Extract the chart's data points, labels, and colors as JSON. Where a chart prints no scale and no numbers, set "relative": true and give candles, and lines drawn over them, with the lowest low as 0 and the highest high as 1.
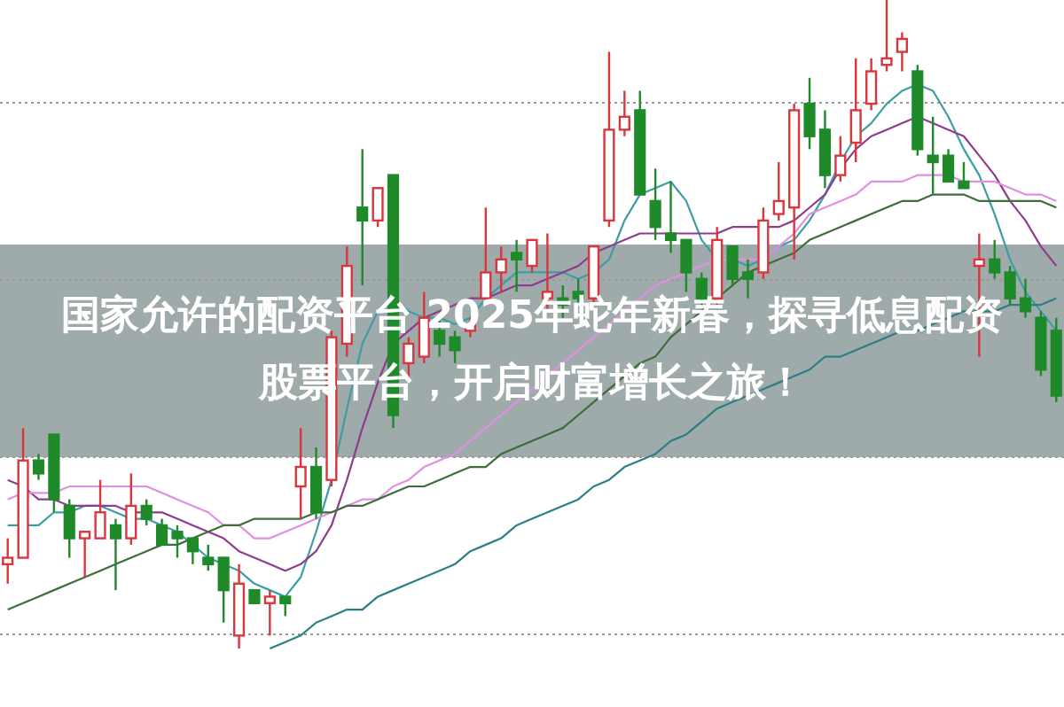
{
  "chart_data": {
    "type": "candlestick",
    "title": "国家允许的配资平台 2025年蛇年新春，探寻低息配资股票平台，开启财富增长之旅！",
    "relative": true,
    "grid": true,
    "categories": [
      null,
      null,
      null,
      null,
      null,
      null,
      null,
      null,
      null,
      null,
      null,
      null,
      null,
      null,
      null,
      null,
      null,
      null,
      null,
      null,
      null,
      null,
      null,
      null,
      null,
      null,
      null,
      null,
      null,
      null,
      null,
      null,
      null,
      null,
      null,
      null,
      null,
      null,
      null,
      null,
      null,
      null,
      null,
      null,
      null,
      null,
      null,
      null,
      null,
      null,
      null,
      null,
      null,
      null,
      null,
      null,
      null,
      null,
      null,
      null,
      null,
      null,
      null,
      null,
      null,
      null,
      null,
      null,
      null
    ],
    "colors": [
      "#d9363e",
      "#d9363e",
      "#1f8a2a",
      "#1f8a2a",
      "#1f8a2a",
      "#d9363e",
      "#d9363e",
      "#1f8a2a",
      "#d9363e",
      "#1f8a2a",
      "#1f8a2a",
      "#1f8a2a",
      "#1f8a2a",
      "#1f8a2a",
      "#1f8a2a",
      "#d9363e",
      "#1f8a2a",
      "#d9363e",
      "#1f8a2a",
      "#d9363e",
      "#1f8a2a",
      "#d9363e",
      "#d9363e",
      "#1f8a2a",
      "#d9363e",
      "#1f8a2a",
      "#d9363e",
      "#d9363e",
      "#1f8a2a",
      "#1f8a2a",
      "#d9363e",
      "#d9363e",
      "#d9363e",
      "#1f8a2a",
      "#d9363e",
      "#d9363e",
      "#1f8a2a",
      "#1f8a2a",
      "#d9363e",
      "#d9363e",
      "#d9363e",
      "#1f8a2a",
      "#1f8a2a",
      "#1f8a2a",
      "#1f8a2a",
      "#1f8a2a",
      "#d9363e",
      "#1f8a2a",
      "#1f8a2a",
      "#d9363e",
      "#d9363e",
      "#d9363e",
      "#1f8a2a",
      "#1f8a2a",
      "#d9363e",
      "#d9363e",
      "#d9363e",
      "#d9363e",
      "#d9363e",
      "#1f8a2a",
      "#1f8a2a",
      "#1f8a2a",
      "#1f8a2a",
      "#d9363e",
      "#1f8a2a",
      "#1f8a2a",
      "#1f8a2a",
      "#1f8a2a",
      "#1f8a2a"
    ],
    "ohlc": [
      [
        0.13,
        0.17,
        0.1,
        0.14
      ],
      [
        0.14,
        0.34,
        0.14,
        0.29
      ],
      [
        0.29,
        0.3,
        0.26,
        0.27
      ],
      [
        0.33,
        0.33,
        0.21,
        0.23
      ],
      [
        0.22,
        0.23,
        0.14,
        0.17
      ],
      [
        0.17,
        0.18,
        0.11,
        0.18
      ],
      [
        0.17,
        0.26,
        0.17,
        0.21
      ],
      [
        0.19,
        0.2,
        0.09,
        0.17
      ],
      [
        0.17,
        0.27,
        0.16,
        0.22
      ],
      [
        0.22,
        0.23,
        0.19,
        0.2
      ],
      [
        0.19,
        0.2,
        0.16,
        0.16
      ],
      [
        0.18,
        0.19,
        0.14,
        0.17
      ],
      [
        0.17,
        0.17,
        0.13,
        0.15
      ],
      [
        0.14,
        0.16,
        0.12,
        0.13
      ],
      [
        0.14,
        0.14,
        0.04,
        0.09
      ],
      [
        0.02,
        0.13,
        0,
        0.1
      ],
      [
        0.09,
        0.09,
        0.07,
        0.07
      ],
      [
        0.07,
        0.09,
        0.02,
        0.08
      ],
      [
        0.08,
        0.08,
        0.05,
        0.07
      ],
      [
        0.25,
        0.34,
        0.2,
        0.28
      ],
      [
        0.28,
        0.31,
        0.2,
        0.21
      ],
      [
        0.26,
        0.49,
        0.25,
        0.48
      ],
      [
        0.47,
        0.62,
        0.45,
        0.59
      ],
      [
        0.68,
        0.77,
        0.56,
        0.66
      ],
      [
        0.66,
        0.71,
        0.65,
        0.71
      ],
      [
        0.73,
        0.73,
        0.34,
        0.36
      ],
      [
        0.44,
        0.48,
        0.41,
        0.47
      ],
      [
        0.45,
        0.55,
        0.44,
        0.51
      ],
      [
        0.49,
        0.51,
        0.45,
        0.47
      ],
      [
        0.48,
        0.49,
        0.44,
        0.46
      ],
      [
        0.49,
        0.51,
        0.48,
        0.5
      ],
      [
        0.54,
        0.68,
        0.54,
        0.58
      ],
      [
        0.58,
        0.62,
        0.55,
        0.6
      ],
      [
        0.61,
        0.63,
        0.55,
        0.6
      ],
      [
        0.59,
        0.63,
        0.58,
        0.63
      ],
      [
        0.54,
        0.64,
        0.52,
        0.55
      ],
      [
        0.54,
        0.56,
        0.51,
        0.53
      ],
      [
        0.55,
        0.57,
        0.53,
        0.54
      ],
      [
        0.54,
        0.62,
        0.53,
        0.62
      ],
      [
        0.66,
        0.92,
        0.65,
        0.8
      ],
      [
        0.8,
        0.86,
        0.79,
        0.82
      ],
      [
        0.83,
        0.86,
        0.7,
        0.7
      ],
      [
        0.69,
        0.74,
        0.63,
        0.65
      ],
      [
        0.64,
        0.72,
        0.61,
        0.63
      ],
      [
        0.63,
        0.63,
        0.55,
        0.58
      ],
      [
        0.57,
        0.58,
        0.53,
        0.54
      ],
      [
        0.54,
        0.65,
        0.53,
        0.63
      ],
      [
        0.62,
        0.62,
        0.56,
        0.57
      ],
      [
        0.58,
        0.6,
        0.54,
        0.57
      ],
      [
        0.58,
        0.68,
        0.57,
        0.66
      ],
      [
        0.67,
        0.75,
        0.66,
        0.69
      ],
      [
        0.68,
        0.84,
        0.6,
        0.83
      ],
      [
        0.84,
        0.88,
        0.77,
        0.79
      ],
      [
        0.8,
        0.83,
        0.71,
        0.73
      ],
      [
        0.73,
        0.79,
        0.72,
        0.76
      ],
      [
        0.78,
        0.91,
        0.75,
        0.83
      ],
      [
        0.84,
        0.91,
        0.83,
        0.89
      ],
      [
        0.9,
        1,
        0.89,
        0.91
      ],
      [
        0.92,
        0.95,
        0.89,
        0.94
      ],
      [
        0.89,
        0.9,
        0.76,
        0.77
      ],
      [
        0.76,
        0.82,
        0.7,
        0.75
      ],
      [
        0.76,
        0.77,
        0.72,
        0.72
      ],
      [
        0.72,
        0.75,
        0.71,
        0.71
      ],
      [
        0.59,
        0.64,
        0.45,
        0.6
      ],
      [
        0.6,
        0.63,
        0.57,
        0.58
      ],
      [
        0.58,
        0.59,
        0.53,
        0.54
      ],
      [
        0.54,
        0.57,
        0.51,
        0.52
      ],
      [
        0.51,
        0.52,
        0.42,
        0.43
      ],
      [
        0.49,
        0.51,
        0.38,
        0.39
      ]
    ],
    "series": [
      {
        "type": "line",
        "color": "#3c9ea4",
        "values": [
          0.19,
          0.19,
          0.19,
          0.21,
          0.21,
          0.22,
          0.22,
          0.21,
          0.2,
          0.2,
          0.19,
          0.18,
          0.16,
          0.14,
          0.13,
          0.12,
          0.1,
          0.09,
          0.08,
          0.11,
          0.18,
          0.26,
          0.37,
          0.47,
          0.52,
          0.54,
          0.52,
          0.51,
          0.51,
          0.5,
          0.51,
          0.54,
          0.56,
          0.58,
          0.58,
          0.58,
          0.58,
          0.57,
          0.58,
          0.6,
          0.66,
          0.7,
          0.71,
          0.72,
          0.69,
          0.63,
          0.6,
          0.6,
          0.59,
          0.6,
          0.62,
          0.63,
          0.66,
          0.7,
          0.75,
          0.79,
          0.81,
          0.84,
          0.86,
          0.87,
          0.86,
          0.82,
          0.77,
          0.73,
          0.67,
          0.6,
          0.55,
          0.52,
          0.49
        ]
      },
      {
        "type": "line",
        "color": "#8e3d8e",
        "values": [
          0.26,
          0.25,
          0.23,
          0.23,
          0.22,
          0.22,
          0.22,
          0.22,
          0.21,
          0.21,
          0.21,
          0.2,
          0.19,
          0.18,
          0.17,
          0.15,
          0.14,
          0.13,
          0.12,
          0.13,
          0.15,
          0.19,
          0.26,
          0.34,
          0.41,
          0.47,
          0.49,
          0.51,
          0.52,
          0.53,
          0.54,
          0.54,
          0.55,
          0.56,
          0.56,
          0.57,
          0.58,
          0.59,
          0.61,
          0.62,
          0.63,
          0.64,
          0.64,
          0.64,
          0.64,
          0.64,
          0.64,
          0.65,
          0.65,
          0.65,
          0.65,
          0.66,
          0.68,
          0.7,
          0.74,
          0.77,
          0.79,
          0.8,
          0.81,
          0.82,
          0.81,
          0.8,
          0.79,
          0.76,
          0.73,
          0.69,
          0.66,
          0.62,
          0.59
        ]
      },
      {
        "type": "line",
        "color": "#e28fe2",
        "values": [
          0.23,
          0.24,
          0.24,
          0.24,
          0.25,
          0.25,
          0.25,
          0.25,
          0.25,
          0.25,
          0.24,
          0.23,
          0.22,
          0.21,
          0.19,
          0.19,
          0.17,
          0.17,
          0.18,
          0.19,
          0.2,
          0.21,
          0.22,
          0.23,
          0.23,
          0.25,
          0.26,
          0.28,
          0.29,
          0.3,
          0.32,
          0.34,
          0.36,
          0.38,
          0.4,
          0.42,
          0.44,
          0.46,
          0.48,
          0.5,
          0.52,
          0.54,
          0.56,
          0.57,
          0.58,
          0.59,
          0.6,
          0.6,
          0.6,
          0.6,
          0.62,
          0.64,
          0.67,
          0.68,
          0.69,
          0.7,
          0.72,
          0.72,
          0.72,
          0.73,
          0.73,
          0.73,
          0.72,
          0.72,
          0.72,
          0.71,
          0.7,
          0.7,
          0.69
        ]
      },
      {
        "type": "line",
        "color": "#3d6e3a",
        "values": [
          0.06,
          0.07,
          0.08,
          0.09,
          0.1,
          0.11,
          0.12,
          0.13,
          0.14,
          0.15,
          0.16,
          0.16,
          0.17,
          0.18,
          0.19,
          0.19,
          0.2,
          0.2,
          0.2,
          0.2,
          0.21,
          0.21,
          0.22,
          0.22,
          0.23,
          0.24,
          0.25,
          0.25,
          0.26,
          0.27,
          0.28,
          0.28,
          0.3,
          0.31,
          0.32,
          0.33,
          0.34,
          0.36,
          0.38,
          0.4,
          0.42,
          0.44,
          0.45,
          0.48,
          0.5,
          0.52,
          0.54,
          0.56,
          0.58,
          0.59,
          0.6,
          0.61,
          0.63,
          0.64,
          0.65,
          0.66,
          0.67,
          0.68,
          0.69,
          0.69,
          0.7,
          0.7,
          0.7,
          0.69,
          0.69,
          0.69,
          0.69,
          0.69,
          0.68
        ]
      },
      {
        "type": "line",
        "color": "#2b7f86",
        "values": [
          null,
          null,
          null,
          null,
          null,
          null,
          null,
          null,
          null,
          null,
          null,
          null,
          null,
          null,
          null,
          null,
          null,
          0.0,
          0.01,
          0.02,
          0.04,
          0.05,
          0.06,
          0.06,
          0.08,
          0.09,
          0.1,
          0.11,
          0.12,
          0.13,
          0.15,
          0.16,
          0.17,
          0.19,
          0.2,
          0.21,
          0.22,
          0.23,
          0.25,
          0.26,
          0.28,
          0.29,
          0.3,
          0.32,
          0.33,
          0.35,
          0.37,
          0.38,
          0.39,
          0.4,
          0.41,
          0.42,
          0.43,
          0.45,
          0.45,
          0.46,
          0.47,
          0.48,
          0.49,
          0.49,
          0.5,
          0.51,
          0.52,
          0.52,
          0.52,
          0.53,
          0.53,
          0.53,
          0.54
        ]
      }
    ]
  }
}
